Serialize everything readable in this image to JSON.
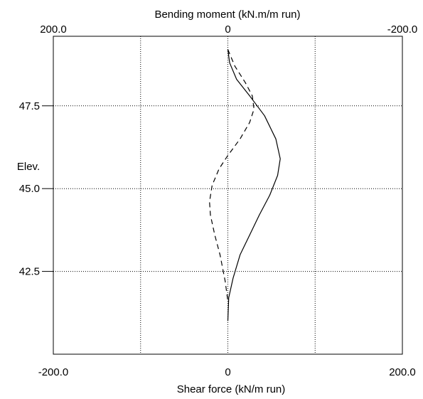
{
  "chart_data": {
    "type": "line",
    "top_axis": {
      "label": "Bending moment (kN.m/m run)",
      "range": [
        200.0,
        -200.0
      ],
      "ticks": [
        {
          "value": 200.0,
          "label": "200.0"
        },
        {
          "value": 0,
          "label": "0"
        },
        {
          "value": -200.0,
          "label": "-200.0"
        }
      ]
    },
    "bottom_axis": {
      "label": "Shear force (kN/m run)",
      "range": [
        -200.0,
        200.0
      ],
      "ticks": [
        {
          "value": -200.0,
          "label": "-200.0"
        },
        {
          "value": 0,
          "label": "0"
        },
        {
          "value": 200.0,
          "label": "200.0"
        }
      ]
    },
    "y_axis": {
      "label": "Elev.",
      "range": [
        40.0,
        49.6
      ],
      "ticks": [
        {
          "value": 47.5,
          "label": "47.5"
        },
        {
          "value": 45.0,
          "label": "45.0"
        },
        {
          "value": 42.5,
          "label": "42.5"
        }
      ]
    },
    "grid": true,
    "series": [
      {
        "key": "bending_moment",
        "axis": "top",
        "style": "solid",
        "points": [
          {
            "x": 0,
            "y": 49.2
          },
          {
            "x": -2,
            "y": 48.8
          },
          {
            "x": -10,
            "y": 48.3
          },
          {
            "x": -25,
            "y": 47.8
          },
          {
            "x": -42,
            "y": 47.2
          },
          {
            "x": -55,
            "y": 46.5
          },
          {
            "x": -60,
            "y": 45.9
          },
          {
            "x": -57,
            "y": 45.4
          },
          {
            "x": -48,
            "y": 44.8
          },
          {
            "x": -36,
            "y": 44.2
          },
          {
            "x": -25,
            "y": 43.6
          },
          {
            "x": -14,
            "y": 43.0
          },
          {
            "x": -6,
            "y": 42.3
          },
          {
            "x": -1,
            "y": 41.7
          },
          {
            "x": 0,
            "y": 41.0
          }
        ]
      },
      {
        "key": "shear_force",
        "axis": "bottom",
        "style": "dashed",
        "points": [
          {
            "x": 0,
            "y": 49.2
          },
          {
            "x": 8,
            "y": 48.7
          },
          {
            "x": 20,
            "y": 48.2
          },
          {
            "x": 28,
            "y": 47.8
          },
          {
            "x": 30,
            "y": 47.4
          },
          {
            "x": 25,
            "y": 47.0
          },
          {
            "x": 14,
            "y": 46.5
          },
          {
            "x": 0,
            "y": 46.0
          },
          {
            "x": -10,
            "y": 45.6
          },
          {
            "x": -18,
            "y": 45.1
          },
          {
            "x": -21,
            "y": 44.6
          },
          {
            "x": -20,
            "y": 44.2
          },
          {
            "x": -15,
            "y": 43.6
          },
          {
            "x": -9,
            "y": 43.0
          },
          {
            "x": -3,
            "y": 42.2
          },
          {
            "x": 0,
            "y": 41.6
          }
        ]
      }
    ]
  }
}
